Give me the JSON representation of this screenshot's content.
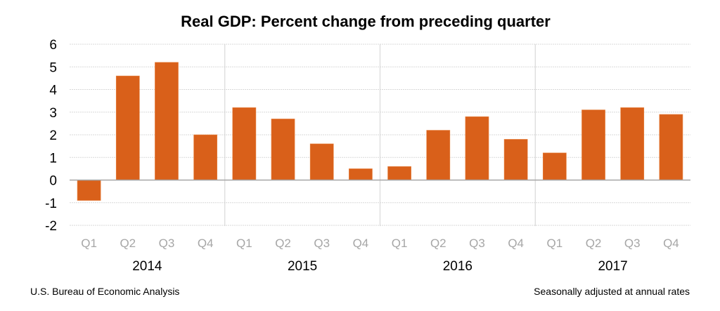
{
  "chart_data": {
    "type": "bar",
    "title": "Real GDP:  Percent change from preceding quarter",
    "xlabel": "",
    "ylabel": "",
    "ylim": [
      -2,
      6
    ],
    "yticks": [
      6,
      5,
      4,
      3,
      2,
      1,
      0,
      -1,
      -2
    ],
    "grid": true,
    "legend": "none",
    "bar_color": "#D9601A",
    "groups": [
      {
        "year": "2014",
        "quarters": [
          "Q1",
          "Q2",
          "Q3",
          "Q4"
        ],
        "values": [
          -0.9,
          4.6,
          5.2,
          2.0
        ]
      },
      {
        "year": "2015",
        "quarters": [
          "Q1",
          "Q2",
          "Q3",
          "Q4"
        ],
        "values": [
          3.2,
          2.7,
          1.6,
          0.5
        ]
      },
      {
        "year": "2016",
        "quarters": [
          "Q1",
          "Q2",
          "Q3",
          "Q4"
        ],
        "values": [
          0.6,
          2.2,
          2.8,
          1.8
        ]
      },
      {
        "year": "2017",
        "quarters": [
          "Q1",
          "Q2",
          "Q3",
          "Q4"
        ],
        "values": [
          1.2,
          3.1,
          3.2,
          2.9
        ]
      }
    ],
    "source_note": "U.S. Bureau of Economic Analysis",
    "adjustment_note": "Seasonally adjusted at annual rates"
  }
}
